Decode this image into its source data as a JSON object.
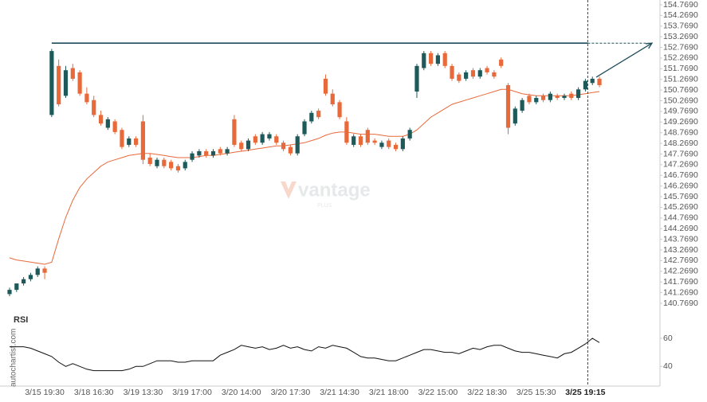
{
  "chart_data": {
    "type": "candlestick",
    "up_color": "#1e5a5a",
    "down_color": "#e8693a",
    "ma_color": "#e8693a",
    "rsi_color": "#111111",
    "level_color": "#1e4e5a",
    "watermark": "vantage",
    "watermark_sub": "PLUS",
    "source": "autochartist.com",
    "rsi_title": "RSI",
    "categories": [
      null,
      null,
      null,
      null,
      null,
      "3/15 19:30",
      null,
      null,
      null,
      null,
      null,
      null,
      "3/18 16:30",
      null,
      null,
      null,
      null,
      null,
      null,
      "3/19 13:30",
      null,
      null,
      null,
      null,
      null,
      null,
      "3/19 17:00",
      null,
      null,
      null,
      null,
      null,
      null,
      "3/20 14:00",
      null,
      null,
      null,
      null,
      null,
      null,
      "3/20 17:30",
      null,
      null,
      null,
      null,
      null,
      null,
      "3/21 14:30",
      null,
      null,
      null,
      null,
      null,
      null,
      "3/21 18:00",
      null,
      null,
      null,
      null,
      null,
      null,
      "3/22 15:00",
      null,
      null,
      null,
      null,
      null,
      null,
      "3/22 18:30",
      null,
      null,
      null,
      null,
      null,
      null,
      "3/25 15:30",
      null,
      null,
      null,
      null,
      null,
      null,
      "3/25 19:15",
      null,
      null
    ],
    "candles": [
      [
        141.2,
        141.5,
        141.1,
        141.4
      ],
      [
        141.4,
        141.7,
        141.3,
        141.7
      ],
      [
        141.7,
        142.0,
        141.6,
        141.9
      ],
      [
        141.9,
        142.2,
        141.8,
        142.1
      ],
      [
        142.1,
        142.5,
        142.0,
        142.4
      ],
      [
        142.4,
        142.5,
        141.9,
        142.2
      ],
      [
        149.6,
        152.7,
        149.5,
        152.6
      ],
      [
        151.9,
        152.2,
        150.0,
        150.1
      ],
      [
        150.5,
        151.9,
        150.4,
        151.7
      ],
      [
        151.8,
        152.0,
        151.2,
        151.3
      ],
      [
        151.6,
        151.7,
        150.5,
        150.6
      ],
      [
        150.6,
        150.9,
        150.1,
        150.2
      ],
      [
        150.3,
        150.5,
        149.5,
        149.6
      ],
      [
        149.6,
        149.8,
        149.1,
        149.2
      ],
      [
        149.0,
        149.5,
        148.9,
        149.4
      ],
      [
        149.3,
        149.4,
        148.7,
        148.8
      ],
      [
        148.9,
        149.0,
        148.0,
        148.1
      ],
      [
        148.2,
        148.6,
        148.1,
        148.5
      ],
      [
        148.5,
        148.6,
        148.1,
        148.2
      ],
      [
        149.3,
        149.6,
        147.3,
        147.5
      ],
      [
        147.6,
        147.8,
        147.2,
        147.3
      ],
      [
        147.2,
        147.6,
        147.1,
        147.5
      ],
      [
        147.5,
        147.6,
        147.1,
        147.2
      ],
      [
        147.4,
        147.5,
        147.0,
        147.1
      ],
      [
        147.2,
        147.3,
        146.9,
        147.0
      ],
      [
        147.1,
        147.5,
        147.0,
        147.4
      ],
      [
        147.5,
        147.9,
        147.4,
        147.8
      ],
      [
        147.7,
        148.0,
        147.6,
        147.9
      ],
      [
        147.9,
        148.0,
        147.6,
        147.7
      ],
      [
        147.7,
        148.0,
        147.6,
        147.9
      ],
      [
        148.0,
        148.1,
        147.7,
        147.8
      ],
      [
        147.8,
        148.1,
        147.7,
        148.0
      ],
      [
        149.4,
        149.6,
        148.1,
        148.2
      ],
      [
        148.3,
        148.4,
        147.9,
        148.0
      ],
      [
        148.0,
        148.5,
        147.9,
        148.4
      ],
      [
        148.6,
        148.7,
        148.2,
        148.3
      ],
      [
        148.3,
        148.8,
        148.2,
        148.7
      ],
      [
        148.5,
        148.8,
        148.4,
        148.7
      ],
      [
        148.6,
        148.7,
        148.2,
        148.3
      ],
      [
        148.3,
        148.4,
        147.9,
        148.0
      ],
      [
        148.1,
        148.2,
        147.7,
        147.8
      ],
      [
        147.8,
        148.7,
        147.7,
        148.6
      ],
      [
        148.7,
        149.4,
        148.6,
        149.3
      ],
      [
        149.3,
        149.8,
        149.2,
        149.7
      ],
      [
        149.8,
        149.9,
        149.4,
        149.5
      ],
      [
        151.3,
        151.5,
        150.5,
        150.6
      ],
      [
        150.6,
        150.8,
        150.0,
        150.1
      ],
      [
        150.2,
        150.3,
        149.4,
        149.5
      ],
      [
        149.3,
        149.5,
        148.2,
        148.3
      ],
      [
        148.2,
        148.7,
        148.1,
        148.6
      ],
      [
        148.6,
        148.7,
        148.1,
        148.2
      ],
      [
        148.9,
        149.0,
        148.2,
        148.3
      ],
      [
        148.4,
        148.5,
        148.2,
        148.3
      ],
      [
        148.1,
        148.4,
        148.0,
        148.3
      ],
      [
        148.4,
        148.5,
        148.0,
        148.1
      ],
      [
        148.2,
        148.3,
        147.9,
        148.0
      ],
      [
        148.0,
        148.6,
        147.9,
        148.5
      ],
      [
        148.5,
        149.0,
        148.4,
        148.9
      ],
      [
        150.7,
        152.0,
        150.4,
        151.9
      ],
      [
        151.8,
        152.6,
        151.7,
        152.5
      ],
      [
        152.5,
        152.6,
        151.9,
        152.0
      ],
      [
        152.0,
        152.5,
        151.9,
        152.4
      ],
      [
        152.5,
        152.6,
        151.8,
        151.9
      ],
      [
        151.9,
        152.0,
        151.2,
        151.3
      ],
      [
        151.5,
        151.6,
        151.1,
        151.2
      ],
      [
        151.3,
        151.7,
        151.2,
        151.6
      ],
      [
        151.7,
        151.8,
        151.3,
        151.4
      ],
      [
        151.4,
        151.8,
        151.3,
        151.7
      ],
      [
        151.8,
        151.9,
        151.5,
        151.6
      ],
      [
        151.6,
        151.7,
        151.3,
        151.4
      ],
      [
        152.2,
        152.3,
        151.8,
        151.9
      ],
      [
        151.0,
        151.1,
        148.7,
        149.0
      ],
      [
        149.2,
        150.0,
        149.1,
        149.9
      ],
      [
        149.8,
        150.4,
        149.7,
        150.3
      ],
      [
        150.5,
        150.6,
        150.1,
        150.2
      ],
      [
        150.2,
        150.5,
        150.1,
        150.4
      ],
      [
        150.5,
        150.6,
        150.2,
        150.3
      ],
      [
        150.3,
        150.7,
        150.2,
        150.6
      ],
      [
        150.5,
        150.6,
        150.3,
        150.4
      ],
      [
        150.4,
        150.6,
        150.3,
        150.5
      ],
      [
        150.6,
        150.7,
        150.3,
        150.4
      ],
      [
        150.4,
        150.9,
        150.3,
        150.8
      ],
      [
        150.8,
        151.3,
        150.7,
        151.2
      ],
      [
        151.1,
        151.4,
        151.0,
        151.3
      ],
      [
        151.3,
        151.4,
        150.9,
        151.0
      ]
    ],
    "ma": [
      142.9,
      142.8,
      142.75,
      142.7,
      142.65,
      142.6,
      142.7,
      143.8,
      144.8,
      145.6,
      146.2,
      146.6,
      146.9,
      147.2,
      147.4,
      147.5,
      147.6,
      147.7,
      147.75,
      147.8,
      147.8,
      147.75,
      147.7,
      147.65,
      147.6,
      147.6,
      147.6,
      147.65,
      147.7,
      147.7,
      147.75,
      147.8,
      147.85,
      147.9,
      147.95,
      148.0,
      148.05,
      148.1,
      148.15,
      148.15,
      148.2,
      148.25,
      148.3,
      148.4,
      148.5,
      148.65,
      148.75,
      148.8,
      148.8,
      148.75,
      148.7,
      148.7,
      148.7,
      148.65,
      148.6,
      148.6,
      148.6,
      148.7,
      148.9,
      149.2,
      149.5,
      149.7,
      149.9,
      150.1,
      150.2,
      150.3,
      150.4,
      150.5,
      150.6,
      150.7,
      150.8,
      150.8,
      150.7,
      150.6,
      150.55,
      150.5,
      150.5,
      150.5,
      150.5,
      150.5,
      150.5,
      150.55,
      150.6,
      150.65,
      150.7
    ],
    "rsi": [
      54,
      54,
      54,
      53,
      51,
      49,
      47,
      43,
      40,
      42,
      40,
      38,
      37,
      37,
      37,
      37,
      37,
      38,
      40,
      40,
      42,
      44,
      44,
      44,
      43,
      43,
      44,
      44,
      44,
      44,
      48,
      50,
      52,
      55,
      54,
      53,
      54,
      52,
      53,
      55,
      53,
      54,
      52,
      51,
      54,
      53,
      55,
      54,
      53,
      50,
      47,
      46,
      46,
      45,
      44,
      44,
      46,
      48,
      50,
      52,
      52,
      51,
      50,
      50,
      49,
      51,
      53,
      52,
      54,
      55,
      55,
      53,
      51,
      50,
      50,
      49,
      48,
      47,
      46,
      49,
      50,
      53,
      56,
      60,
      57
    ],
    "level": 152.97,
    "ylim": [
      140.769,
      154.769
    ],
    "yticks": [
      {
        "value": 140.769,
        "label": "140.7690"
      },
      {
        "value": 141.269,
        "label": "141.2690"
      },
      {
        "value": 141.769,
        "label": "141.7690"
      },
      {
        "value": 142.269,
        "label": "142.2690"
      },
      {
        "value": 142.769,
        "label": "142.7690"
      },
      {
        "value": 143.269,
        "label": "143.2690"
      },
      {
        "value": 143.769,
        "label": "143.7690"
      },
      {
        "value": 144.269,
        "label": "144.2690"
      },
      {
        "value": 144.769,
        "label": "144.7690"
      },
      {
        "value": 145.269,
        "label": "145.2690"
      },
      {
        "value": 145.769,
        "label": "145.7690"
      },
      {
        "value": 146.269,
        "label": "146.2690"
      },
      {
        "value": 146.769,
        "label": "146.7690"
      },
      {
        "value": 147.269,
        "label": "147.2690"
      },
      {
        "value": 147.769,
        "label": "147.7690"
      },
      {
        "value": 148.269,
        "label": "148.2690"
      },
      {
        "value": 148.769,
        "label": "148.7690"
      },
      {
        "value": 149.269,
        "label": "149.2690"
      },
      {
        "value": 149.769,
        "label": "149.7690"
      },
      {
        "value": 150.269,
        "label": "150.2690"
      },
      {
        "value": 150.769,
        "label": "150.7690"
      },
      {
        "value": 151.269,
        "label": "151.2690"
      },
      {
        "value": 151.769,
        "label": "151.7690"
      },
      {
        "value": 152.269,
        "label": "152.2690"
      },
      {
        "value": 152.769,
        "label": "152.7690"
      },
      {
        "value": 153.269,
        "label": "153.2690"
      },
      {
        "value": 153.769,
        "label": "153.7690"
      },
      {
        "value": 154.269,
        "label": "154.2690"
      },
      {
        "value": 154.769,
        "label": "154.7690"
      }
    ],
    "y2lim": [
      26,
      77
    ],
    "y2ticks": [
      40,
      60
    ]
  }
}
